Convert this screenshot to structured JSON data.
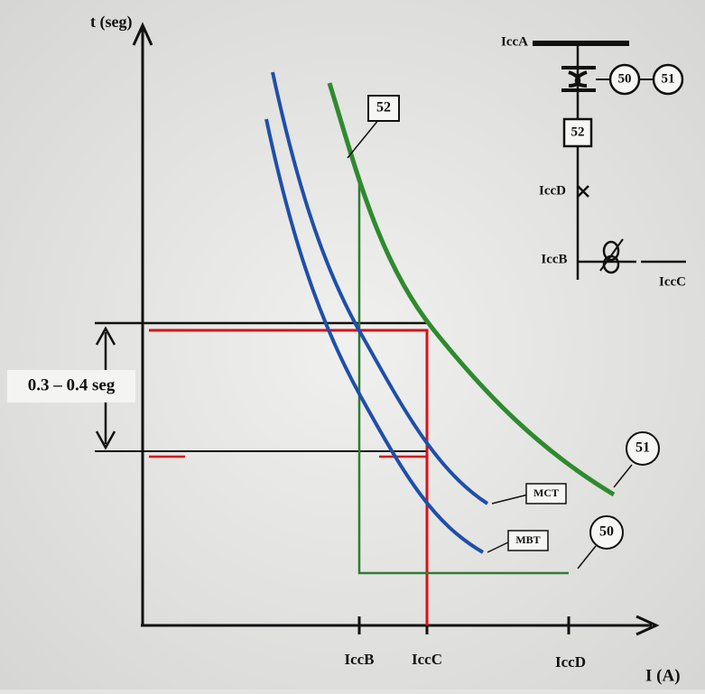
{
  "axes": {
    "y_label": "t (seg)",
    "x_label": "I (A)",
    "x_ticks": [
      "IccB",
      "IccC",
      "IccD"
    ],
    "interval": "0.3 – 0.4 seg"
  },
  "curves": {
    "c52": "52",
    "c51": "51",
    "c50": "50",
    "mct": "MCT",
    "mbt": "MBT"
  },
  "single_line": {
    "bus": "IccA",
    "relay_50": "50",
    "relay_51": "51",
    "breaker": "52",
    "fault_d": "IccD",
    "fault_b": "IccB",
    "fault_c": "IccC"
  }
}
